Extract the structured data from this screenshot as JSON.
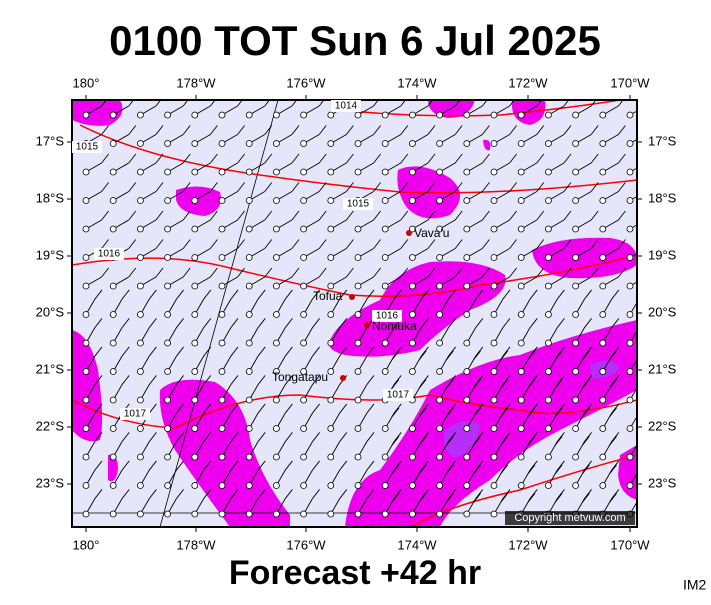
{
  "title": "0100 TOT Sun 6 Jul 2025",
  "footer": "Forecast +42 hr",
  "corner": "IM2",
  "copyright": "Copyright metvuw.com",
  "lon_labels": [
    "180°",
    "178°W",
    "176°W",
    "174°W",
    "172°W",
    "170°W"
  ],
  "lat_labels": [
    "17°S",
    "18°S",
    "19°S",
    "20°S",
    "21°S",
    "22°S",
    "23°S"
  ],
  "places": [
    "Vava'u",
    "Tofua",
    "Nomuka",
    "Tongatapu"
  ],
  "isobar_labels": [
    "1014",
    "1015",
    "1015",
    "1016",
    "1016",
    "1017",
    "1017"
  ]
}
